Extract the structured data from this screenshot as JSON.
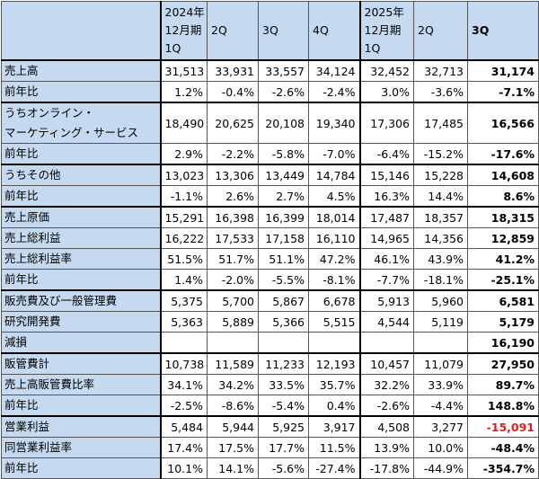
{
  "table": {
    "columns": [
      [
        "2024年",
        "12月期",
        "1Q"
      ],
      [
        "2Q"
      ],
      [
        "3Q"
      ],
      [
        "4Q"
      ],
      [
        "2025年",
        "12月期",
        "1Q"
      ],
      [
        "2Q"
      ],
      [
        "3Q"
      ]
    ],
    "groups": [
      {
        "rows": [
          {
            "label": [
              "売上高"
            ],
            "values": [
              "31,513",
              "33,931",
              "33,557",
              "34,124",
              "32,452",
              "32,713",
              "31,174"
            ]
          },
          {
            "label": [
              "前年比"
            ],
            "values": [
              "1.2%",
              "-0.4%",
              "-2.6%",
              "-2.4%",
              "3.0%",
              "-3.6%",
              "-7.1%"
            ]
          }
        ]
      },
      {
        "rows": [
          {
            "label": [
              "うちオンライン・",
              "マーケティング・サービス"
            ],
            "values": [
              "18,490",
              "20,625",
              "20,108",
              "19,340",
              "17,306",
              "17,485",
              "16,566"
            ]
          },
          {
            "label": [
              "前年比"
            ],
            "values": [
              "2.9%",
              "-2.2%",
              "-5.8%",
              "-7.0%",
              "-6.4%",
              "-15.2%",
              "-17.6%"
            ]
          }
        ]
      },
      {
        "rows": [
          {
            "label": [
              "うちその他"
            ],
            "values": [
              "13,023",
              "13,306",
              "13,449",
              "14,784",
              "15,146",
              "15,228",
              "14,608"
            ]
          },
          {
            "label": [
              "前年比"
            ],
            "values": [
              "-1.1%",
              "2.6%",
              "2.7%",
              "4.5%",
              "16.3%",
              "14.4%",
              "8.6%"
            ]
          }
        ]
      },
      {
        "rows": [
          {
            "label": [
              "売上原価"
            ],
            "values": [
              "15,291",
              "16,398",
              "16,399",
              "18,014",
              "17,487",
              "18,357",
              "18,315"
            ]
          },
          {
            "label": [
              "売上総利益"
            ],
            "values": [
              "16,222",
              "17,533",
              "17,158",
              "16,110",
              "14,965",
              "14,356",
              "12,859"
            ]
          },
          {
            "label": [
              "売上総利益率"
            ],
            "values": [
              "51.5%",
              "51.7%",
              "51.1%",
              "47.2%",
              "46.1%",
              "43.9%",
              "41.2%"
            ]
          },
          {
            "label": [
              "前年比"
            ],
            "values": [
              "1.4%",
              "-2.0%",
              "-5.5%",
              "-8.1%",
              "-7.7%",
              "-18.1%",
              "-25.1%"
            ]
          }
        ]
      },
      {
        "rows": [
          {
            "label": [
              "販売費及び一般管理費"
            ],
            "values": [
              "5,375",
              "5,700",
              "5,867",
              "6,678",
              "5,913",
              "5,960",
              "6,581"
            ]
          },
          {
            "label": [
              "研究開発費"
            ],
            "values": [
              "5,363",
              "5,889",
              "5,366",
              "5,515",
              "4,544",
              "5,119",
              "5,179"
            ]
          },
          {
            "label": [
              "減損"
            ],
            "values": [
              null,
              null,
              null,
              null,
              null,
              null,
              "16,190"
            ]
          }
        ]
      },
      {
        "rows": [
          {
            "label": [
              "販管費計"
            ],
            "values": [
              "10,738",
              "11,589",
              "11,233",
              "12,193",
              "10,457",
              "11,079",
              "27,950"
            ]
          },
          {
            "label": [
              "売上高販管費比率"
            ],
            "values": [
              "34.1%",
              "34.2%",
              "33.5%",
              "35.7%",
              "32.2%",
              "33.9%",
              "89.7%"
            ]
          },
          {
            "label": [
              "前年比"
            ],
            "values": [
              "-2.5%",
              "-8.6%",
              "-5.4%",
              "0.4%",
              "-2.6%",
              "-4.4%",
              "148.8%"
            ]
          }
        ]
      },
      {
        "rows": [
          {
            "label": [
              "営業利益"
            ],
            "values": [
              "5,484",
              "5,944",
              "5,925",
              "3,917",
              "4,508",
              "3,277",
              "-15,091"
            ]
          },
          {
            "label": [
              "同営業利益率"
            ],
            "values": [
              "17.4%",
              "17.5%",
              "17.7%",
              "11.5%",
              "13.9%",
              "10.0%",
              "-48.4%"
            ]
          },
          {
            "label": [
              "前年比"
            ],
            "values": [
              "10.1%",
              "14.1%",
              "-5.6%",
              "-27.4%",
              "-17.8%",
              "-44.9%",
              "-354.7%"
            ]
          }
        ]
      }
    ]
  }
}
